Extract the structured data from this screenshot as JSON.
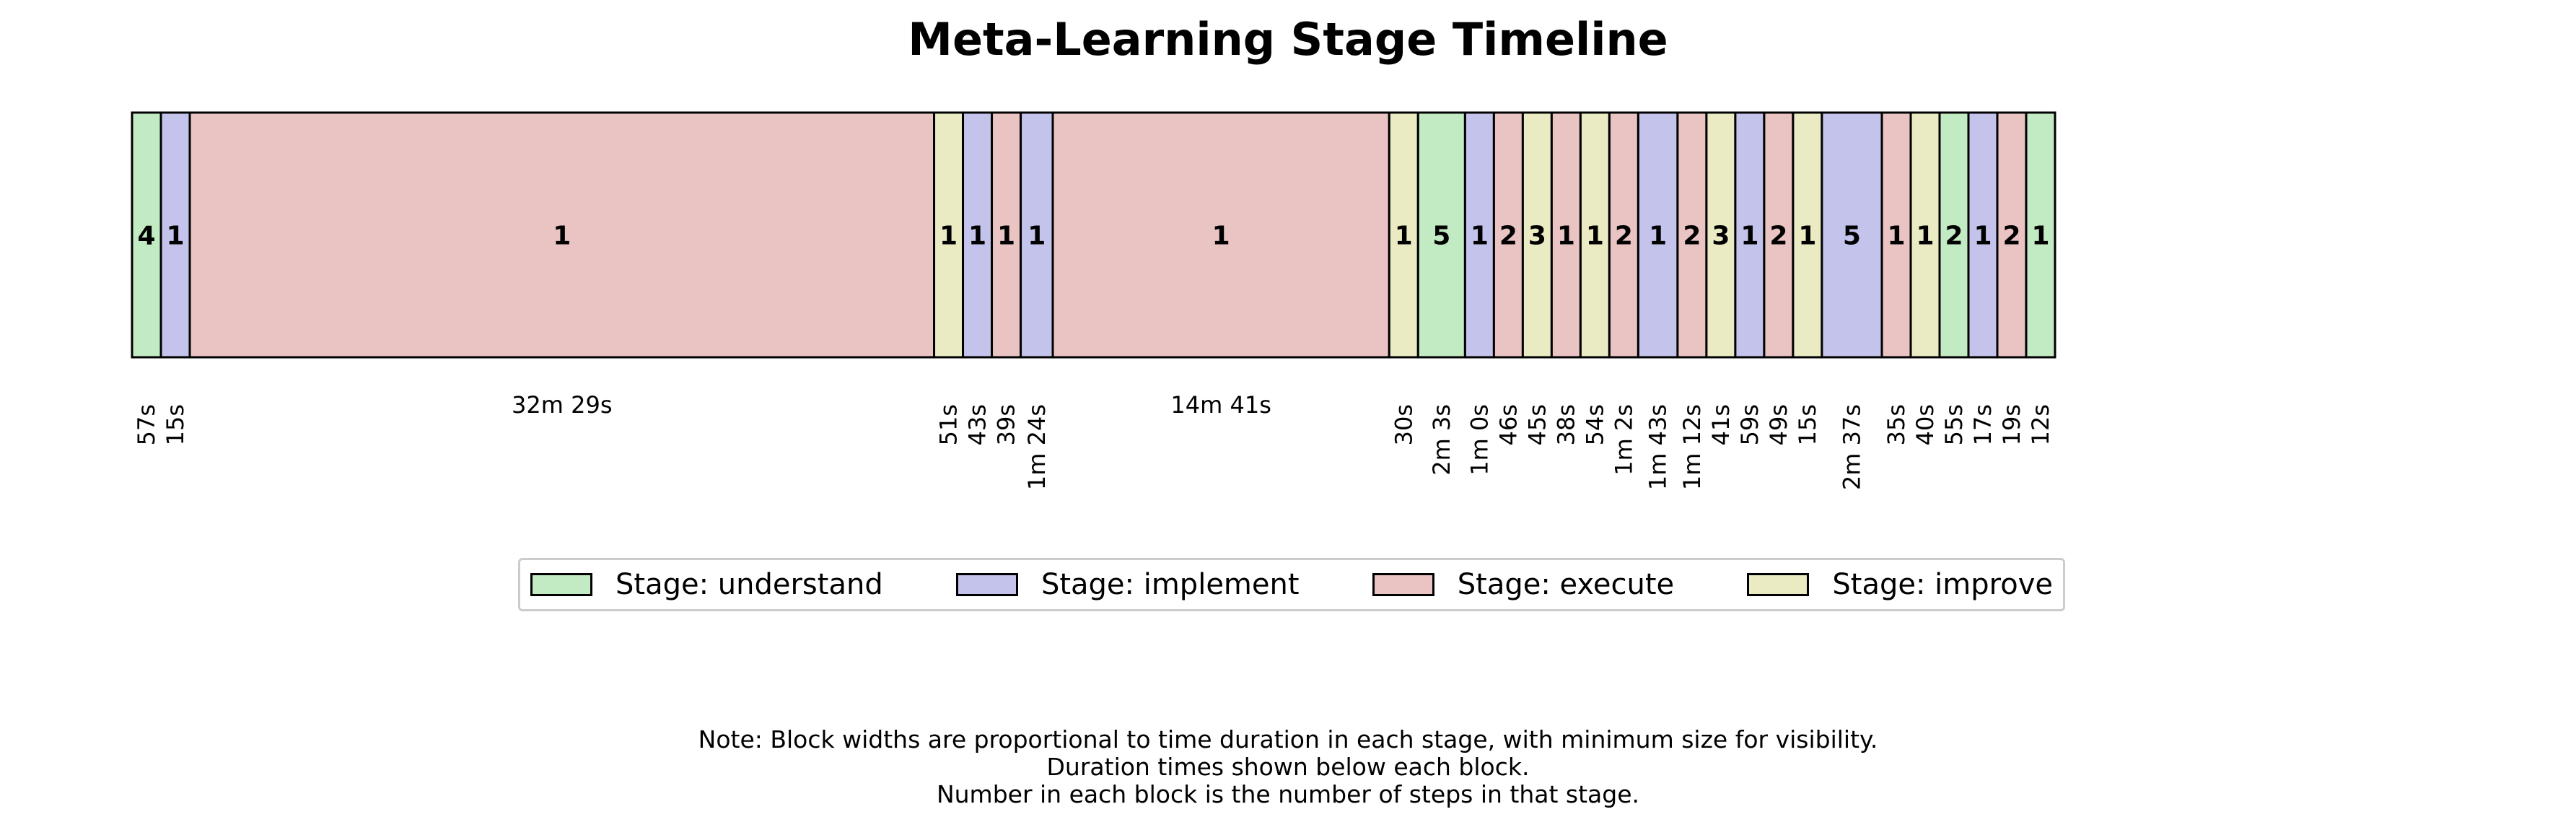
{
  "chart_data": {
    "type": "timeline",
    "title": "Meta-Learning Stage Timeline",
    "stage_colors": {
      "understand": "#c3ebc3",
      "implement": "#c4c3eb",
      "execute": "#eac3c3",
      "improve": "#eaebc3"
    },
    "legend": [
      {
        "label": "Stage: understand",
        "stage": "understand"
      },
      {
        "label": "Stage: implement",
        "stage": "implement"
      },
      {
        "label": "Stage: execute",
        "stage": "execute"
      },
      {
        "label": "Stage: improve",
        "stage": "improve"
      }
    ],
    "blocks": [
      {
        "stage": "understand",
        "steps": 4,
        "duration": "57s"
      },
      {
        "stage": "implement",
        "steps": 1,
        "duration": "15s"
      },
      {
        "stage": "execute",
        "steps": 1,
        "duration": "32m 29s"
      },
      {
        "stage": "improve",
        "steps": 1,
        "duration": "51s"
      },
      {
        "stage": "implement",
        "steps": 1,
        "duration": "43s"
      },
      {
        "stage": "execute",
        "steps": 1,
        "duration": "39s"
      },
      {
        "stage": "implement",
        "steps": 1,
        "duration": "1m 24s"
      },
      {
        "stage": "execute",
        "steps": 1,
        "duration": "14m 41s"
      },
      {
        "stage": "improve",
        "steps": 1,
        "duration": "30s"
      },
      {
        "stage": "understand",
        "steps": 5,
        "duration": "2m 3s"
      },
      {
        "stage": "implement",
        "steps": 1,
        "duration": "1m 0s"
      },
      {
        "stage": "execute",
        "steps": 2,
        "duration": "46s"
      },
      {
        "stage": "improve",
        "steps": 3,
        "duration": "45s"
      },
      {
        "stage": "execute",
        "steps": 1,
        "duration": "38s"
      },
      {
        "stage": "improve",
        "steps": 1,
        "duration": "54s"
      },
      {
        "stage": "execute",
        "steps": 2,
        "duration": "1m 2s"
      },
      {
        "stage": "implement",
        "steps": 1,
        "duration": "1m 43s"
      },
      {
        "stage": "execute",
        "steps": 2,
        "duration": "1m 12s"
      },
      {
        "stage": "improve",
        "steps": 3,
        "duration": "41s"
      },
      {
        "stage": "implement",
        "steps": 1,
        "duration": "59s"
      },
      {
        "stage": "execute",
        "steps": 2,
        "duration": "49s"
      },
      {
        "stage": "improve",
        "steps": 1,
        "duration": "15s"
      },
      {
        "stage": "implement",
        "steps": 5,
        "duration": "2m 37s"
      },
      {
        "stage": "execute",
        "steps": 1,
        "duration": "35s"
      },
      {
        "stage": "improve",
        "steps": 1,
        "duration": "40s"
      },
      {
        "stage": "understand",
        "steps": 2,
        "duration": "55s"
      },
      {
        "stage": "implement",
        "steps": 1,
        "duration": "17s"
      },
      {
        "stage": "execute",
        "steps": 2,
        "duration": "19s"
      },
      {
        "stage": "understand",
        "steps": 1,
        "duration": "12s"
      }
    ],
    "notes": [
      "Note: Block widths are proportional to time duration in each stage, with minimum size for visibility.",
      "Duration times shown below each block.",
      "Number in each block is the number of steps in that stage."
    ]
  }
}
